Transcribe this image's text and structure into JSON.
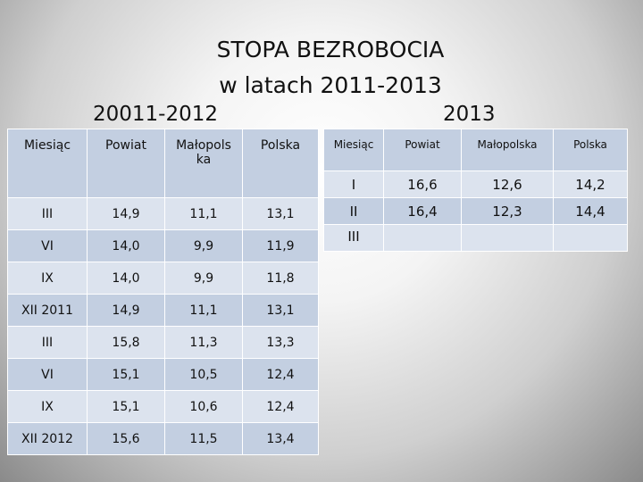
{
  "title_line1": "STOPA BEZROBOCIA",
  "title_line2": "w latach 2011-2013",
  "subtitle_left": "20011-2012",
  "subtitle_right": "2013",
  "left_table": {
    "headers": [
      "Miesiąc",
      "Powiat",
      "Małopols ka",
      "Polska"
    ],
    "rows": [
      [
        "III",
        "14,9",
        "11,1",
        "13,1"
      ],
      [
        "VI",
        "14,0",
        "9,9",
        "11,9"
      ],
      [
        "IX",
        "14,0",
        "9,9",
        "11,8"
      ],
      [
        "XII 2011",
        "14,9",
        "11,1",
        "13,1"
      ],
      [
        "III",
        "15,8",
        "11,3",
        "13,3"
      ],
      [
        "VI",
        "15,1",
        "10,5",
        "12,4"
      ],
      [
        "IX",
        "15,1",
        "10,6",
        "12,4"
      ],
      [
        "XII 2012",
        "15,6",
        "11,5",
        "13,4"
      ]
    ]
  },
  "right_table": {
    "headers": [
      "Miesiąc",
      "Powiat",
      "Małopolska",
      "Polska"
    ],
    "rows": [
      [
        "I",
        "16,6",
        "12,6",
        "14,2"
      ],
      [
        "II",
        "16,4",
        "12,3",
        "14,4"
      ],
      [
        "III",
        "",
        "",
        ""
      ]
    ]
  }
}
